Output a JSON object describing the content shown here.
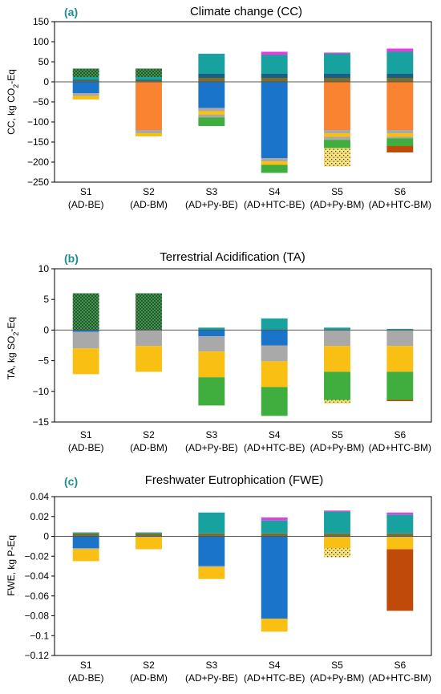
{
  "categories": [
    {
      "code": "S1",
      "desc": "(AD-BE)"
    },
    {
      "code": "S2",
      "desc": "(AD-BM)"
    },
    {
      "code": "S3",
      "desc": "(AD+Py-BE)"
    },
    {
      "code": "S4",
      "desc": "(AD+HTC-BE)"
    },
    {
      "code": "S5",
      "desc": "(AD+Py-BM)"
    },
    {
      "code": "S6",
      "desc": "(AD+HTC-BM)"
    }
  ],
  "colors": {
    "teal": "#17a2a0",
    "olive": "#7a6e2a",
    "darkblue": "#1c5f86",
    "blue": "#1a74c9",
    "orange": "#fa8332",
    "gray": "#a9a9a9",
    "yellow": "#f9c013",
    "green": "#40ad3f",
    "magenta": "#e040e0",
    "brown": "#bf4a0a",
    "darkgreen": "#1e5d28",
    "dot_yellow": "#f9e27a",
    "dot_dark": "#222222"
  },
  "chart_data": [
    {
      "type": "bar",
      "stacked": true,
      "panel_letter": "(a)",
      "title": "Climate change (CC)",
      "ylabel_main": "CC, kg CO",
      "ylabel_sub": "2",
      "ylabel_tail": "-Eq",
      "ylim": [
        -250,
        150
      ],
      "yticks": [
        150,
        100,
        50,
        0,
        -50,
        -100,
        -150,
        -200,
        -250
      ],
      "yticklabels": [
        "150",
        "100",
        "50",
        "0",
        "−50",
        "−100",
        "−150",
        "−200",
        "−250"
      ],
      "grid": false,
      "stacks": [
        {
          "positive": [
            {
              "v": 3,
              "c": "olive"
            },
            {
              "v": 2,
              "c": "darkblue"
            },
            {
              "v": 7,
              "c": "teal"
            },
            {
              "v": 21,
              "c": "darkgreen",
              "pattern": "dots"
            }
          ],
          "negative": [
            {
              "v": -28,
              "c": "blue"
            },
            {
              "v": -7,
              "c": "gray"
            },
            {
              "v": -9,
              "c": "yellow"
            }
          ]
        },
        {
          "positive": [
            {
              "v": 3,
              "c": "olive"
            },
            {
              "v": 2,
              "c": "darkblue"
            },
            {
              "v": 7,
              "c": "teal"
            },
            {
              "v": 21,
              "c": "darkgreen",
              "pattern": "dots"
            }
          ],
          "negative": [
            {
              "v": -120,
              "c": "orange"
            },
            {
              "v": -8,
              "c": "gray"
            },
            {
              "v": -8,
              "c": "yellow"
            }
          ]
        },
        {
          "positive": [
            {
              "v": 10,
              "c": "olive"
            },
            {
              "v": 10,
              "c": "darkblue"
            },
            {
              "v": 50,
              "c": "teal"
            }
          ],
          "negative": [
            {
              "v": -65,
              "c": "blue"
            },
            {
              "v": -8,
              "c": "gray"
            },
            {
              "v": -9,
              "c": "yellow"
            },
            {
              "v": -7,
              "c": "gray"
            },
            {
              "v": -21,
              "c": "green"
            }
          ]
        },
        {
          "positive": [
            {
              "v": 10,
              "c": "olive"
            },
            {
              "v": 10,
              "c": "darkblue"
            },
            {
              "v": 47,
              "c": "teal"
            },
            {
              "v": 8,
              "c": "magenta"
            }
          ],
          "negative": [
            {
              "v": -190,
              "c": "blue"
            },
            {
              "v": -8,
              "c": "gray"
            },
            {
              "v": -9,
              "c": "yellow"
            },
            {
              "v": -20,
              "c": "green"
            }
          ]
        },
        {
          "positive": [
            {
              "v": 10,
              "c": "olive"
            },
            {
              "v": 10,
              "c": "darkblue"
            },
            {
              "v": 50,
              "c": "teal"
            },
            {
              "v": 3,
              "c": "magenta"
            }
          ],
          "negative": [
            {
              "v": -120,
              "c": "orange"
            },
            {
              "v": -8,
              "c": "gray"
            },
            {
              "v": -9,
              "c": "yellow"
            },
            {
              "v": -8,
              "c": "gray"
            },
            {
              "v": -20,
              "c": "green"
            },
            {
              "v": -46,
              "c": "dot_yellow",
              "pattern": "dots"
            }
          ]
        },
        {
          "positive": [
            {
              "v": 10,
              "c": "olive"
            },
            {
              "v": 10,
              "c": "darkblue"
            },
            {
              "v": 55,
              "c": "teal"
            },
            {
              "v": 8,
              "c": "magenta"
            }
          ],
          "negative": [
            {
              "v": -120,
              "c": "orange"
            },
            {
              "v": -8,
              "c": "gray"
            },
            {
              "v": -9,
              "c": "yellow"
            },
            {
              "v": -4,
              "c": "gray"
            },
            {
              "v": -19,
              "c": "green"
            },
            {
              "v": -16,
              "c": "brown"
            }
          ]
        }
      ]
    },
    {
      "type": "bar",
      "stacked": true,
      "panel_letter": "(b)",
      "title": "Terrestrial Acidification (TA)",
      "ylabel_main": "TA, kg SO",
      "ylabel_sub": "2",
      "ylabel_tail": "-Eq",
      "ylim": [
        -15,
        10
      ],
      "yticks": [
        10,
        5,
        0,
        -5,
        -10,
        -15
      ],
      "yticklabels": [
        "10",
        "5",
        "0",
        "−5",
        "−10",
        "−15"
      ],
      "grid": false,
      "stacks": [
        {
          "positive": [
            {
              "v": 6.0,
              "c": "darkgreen",
              "pattern": "dots"
            }
          ],
          "negative": [
            {
              "v": -0.3,
              "c": "blue"
            },
            {
              "v": -2.7,
              "c": "gray"
            },
            {
              "v": -4.2,
              "c": "yellow"
            }
          ]
        },
        {
          "positive": [
            {
              "v": 6.0,
              "c": "darkgreen",
              "pattern": "dots"
            }
          ],
          "negative": [
            {
              "v": -2.6,
              "c": "gray"
            },
            {
              "v": -4.2,
              "c": "yellow"
            }
          ]
        },
        {
          "positive": [
            {
              "v": 0.4,
              "c": "teal"
            }
          ],
          "negative": [
            {
              "v": -1.0,
              "c": "blue"
            },
            {
              "v": -2.5,
              "c": "gray"
            },
            {
              "v": -4.2,
              "c": "yellow"
            },
            {
              "v": -4.6,
              "c": "green"
            }
          ]
        },
        {
          "positive": [
            {
              "v": 1.9,
              "c": "teal"
            }
          ],
          "negative": [
            {
              "v": -2.5,
              "c": "blue"
            },
            {
              "v": -2.6,
              "c": "gray"
            },
            {
              "v": -4.2,
              "c": "yellow"
            },
            {
              "v": -4.7,
              "c": "green"
            }
          ]
        },
        {
          "positive": [
            {
              "v": 0.4,
              "c": "teal"
            }
          ],
          "negative": [
            {
              "v": -2.6,
              "c": "gray"
            },
            {
              "v": -4.2,
              "c": "yellow"
            },
            {
              "v": -4.6,
              "c": "green"
            },
            {
              "v": -0.6,
              "c": "dot_yellow",
              "pattern": "dots"
            }
          ]
        },
        {
          "positive": [
            {
              "v": 0.2,
              "c": "teal"
            }
          ],
          "negative": [
            {
              "v": -2.6,
              "c": "gray"
            },
            {
              "v": -4.2,
              "c": "yellow"
            },
            {
              "v": -4.6,
              "c": "green"
            },
            {
              "v": -0.2,
              "c": "brown"
            }
          ]
        }
      ]
    },
    {
      "type": "bar",
      "stacked": true,
      "panel_letter": "(c)",
      "title": "Freshwater Eutrophication (FWE)",
      "ylabel_main": "FWE, kg P-Eq",
      "ylabel_sub": "",
      "ylabel_tail": "",
      "ylim": [
        -0.12,
        0.04
      ],
      "yticks": [
        0.04,
        0.02,
        0,
        -0.02,
        -0.04,
        -0.06,
        -0.08,
        -0.1,
        -0.12
      ],
      "yticklabels": [
        "0.04",
        "0.02",
        "0",
        "−0.02",
        "−0.04",
        "−0.06",
        "−0.08",
        "−0.1",
        "−0.12"
      ],
      "grid": false,
      "stacks": [
        {
          "positive": [
            {
              "v": 0.003,
              "c": "olive"
            },
            {
              "v": 0.001,
              "c": "teal"
            }
          ],
          "negative": [
            {
              "v": -0.012,
              "c": "blue"
            },
            {
              "v": -0.001,
              "c": "gray"
            },
            {
              "v": -0.012,
              "c": "yellow"
            }
          ]
        },
        {
          "positive": [
            {
              "v": 0.003,
              "c": "olive"
            },
            {
              "v": 0.001,
              "c": "teal"
            }
          ],
          "negative": [
            {
              "v": -0.001,
              "c": "gray"
            },
            {
              "v": -0.012,
              "c": "yellow"
            }
          ]
        },
        {
          "positive": [
            {
              "v": 0.003,
              "c": "olive"
            },
            {
              "v": 0.021,
              "c": "teal"
            }
          ],
          "negative": [
            {
              "v": -0.03,
              "c": "blue"
            },
            {
              "v": -0.001,
              "c": "gray"
            },
            {
              "v": -0.012,
              "c": "yellow"
            }
          ]
        },
        {
          "positive": [
            {
              "v": 0.003,
              "c": "olive"
            },
            {
              "v": 0.013,
              "c": "teal"
            },
            {
              "v": 0.003,
              "c": "magenta"
            }
          ],
          "negative": [
            {
              "v": -0.083,
              "c": "blue"
            },
            {
              "v": -0.013,
              "c": "yellow"
            }
          ]
        },
        {
          "positive": [
            {
              "v": 0.003,
              "c": "olive"
            },
            {
              "v": 0.022,
              "c": "teal"
            },
            {
              "v": 0.001,
              "c": "magenta"
            }
          ],
          "negative": [
            {
              "v": -0.001,
              "c": "gray"
            },
            {
              "v": -0.011,
              "c": "yellow"
            },
            {
              "v": -0.009,
              "c": "dot_yellow",
              "pattern": "dots"
            }
          ]
        },
        {
          "positive": [
            {
              "v": 0.003,
              "c": "olive"
            },
            {
              "v": 0.019,
              "c": "teal"
            },
            {
              "v": 0.002,
              "c": "magenta"
            }
          ],
          "negative": [
            {
              "v": -0.001,
              "c": "gray"
            },
            {
              "v": -0.012,
              "c": "yellow"
            },
            {
              "v": -0.062,
              "c": "brown"
            }
          ]
        }
      ]
    }
  ]
}
